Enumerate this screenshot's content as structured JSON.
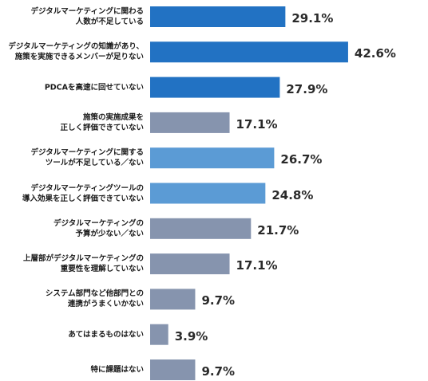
{
  "chart_data": {
    "type": "bar",
    "orientation": "horizontal",
    "value_format": "{v}%",
    "xlim": [
      0,
      50
    ],
    "grid": false,
    "colors": {
      "dark_blue": "#2272c3",
      "light_blue": "#5b9bd5",
      "gray": "#8694ae"
    },
    "categories": [
      "デジタルマーケティングに関わる\n人数が不足している",
      "デジタルマーケティングの知識があり、\n施策を実施できるメンバーが足りない",
      "PDCAを高速に回せていない",
      "施策の実施成果を\n正しく評価できていない",
      "デジタルマーケティングに関する\nツールが不足している／ない",
      "デジタルマーケティングツールの\n導入効果を正しく評価できていない",
      "デジタルマーケティングの\n予算が少ない／ない",
      "上層部がデジタルマーケティングの\n重要性を理解していない",
      "システム部門など他部門との\n連携がうまくいかない",
      "あてはまるものはない",
      "特に課題はない"
    ],
    "values": [
      29.1,
      42.6,
      27.9,
      17.1,
      26.7,
      24.8,
      21.7,
      17.1,
      9.7,
      3.9,
      9.7
    ],
    "value_labels": [
      "29.1%",
      "42.6%",
      "27.9%",
      "17.1%",
      "26.7%",
      "24.8%",
      "21.7%",
      "17.1%",
      "9.7%",
      "3.9%",
      "9.7%"
    ],
    "bar_colors": [
      "dark_blue",
      "dark_blue",
      "dark_blue",
      "gray",
      "light_blue",
      "light_blue",
      "gray",
      "gray",
      "gray",
      "gray",
      "gray"
    ]
  }
}
